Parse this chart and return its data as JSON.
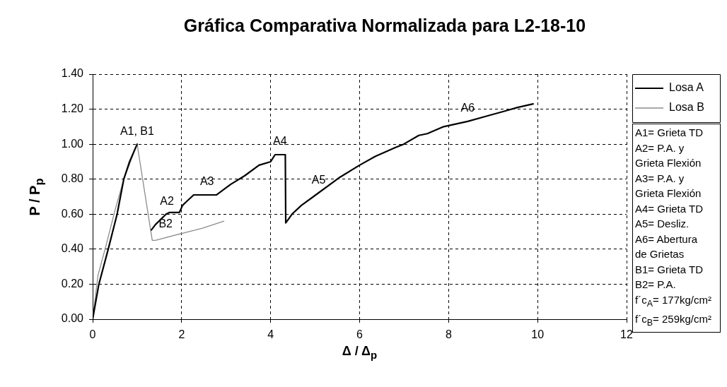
{
  "chart_data": {
    "type": "line",
    "title": "Gráfica Comparativa Normalizada para L2-18-10",
    "xlabel": "Δ / Δ$_{p}$",
    "ylabel": "P / P$_{p}$",
    "series": [
      {
        "name": "Losa A",
        "color": "#000000",
        "x": [
          0,
          0.14,
          0.35,
          0.55,
          0.7,
          0.83,
          1.0,
          1.16,
          1.32,
          1.41,
          1.65,
          1.73,
          1.95,
          2.02,
          2.1,
          2.27,
          2.78,
          3.1,
          3.42,
          3.74,
          4.0,
          4.1,
          4.33,
          4.34,
          4.48,
          4.69,
          4.96,
          5.55,
          6.0,
          6.35,
          6.8,
          6.99,
          7.33,
          7.52,
          7.89,
          8.43,
          8.85,
          9.28,
          9.55,
          9.9
        ],
        "values": [
          0,
          0.2,
          0.4,
          0.6,
          0.8,
          0.9,
          1.0,
          null,
          0.51,
          0.54,
          0.6,
          0.61,
          0.61,
          0.65,
          0.67,
          0.71,
          0.71,
          0.77,
          0.82,
          0.88,
          0.9,
          0.94,
          0.94,
          0.55,
          0.6,
          0.65,
          0.7,
          0.81,
          0.88,
          0.93,
          0.98,
          1.0,
          1.05,
          1.06,
          1.1,
          1.13,
          1.16,
          1.19,
          1.21,
          1.23
        ]
      },
      {
        "name": "Losa B",
        "color": "#8c8c8c",
        "x": [
          0,
          0.12,
          0.3,
          0.5,
          0.7,
          0.85,
          1.0,
          1.34,
          1.41,
          2.0,
          2.47,
          2.95
        ],
        "values": [
          0,
          0.25,
          0.42,
          0.62,
          0.8,
          0.9,
          1.0,
          0.45,
          0.45,
          0.49,
          0.52,
          0.56
        ]
      }
    ],
    "xlim": [
      0,
      12
    ],
    "xticks": [
      0,
      2,
      4,
      6,
      8,
      10,
      12
    ],
    "ylim": [
      0,
      1.4
    ],
    "yticks": [
      {
        "value": 0,
        "label": "0.00"
      },
      {
        "value": 0.2,
        "label": "0.20"
      },
      {
        "value": 0.4,
        "label": "0.40"
      },
      {
        "value": 0.6,
        "label": "0.60"
      },
      {
        "value": 0.8,
        "label": "0.80"
      },
      {
        "value": 1.0,
        "label": "1.00"
      },
      {
        "value": 1.2,
        "label": "1.20"
      },
      {
        "value": 1.4,
        "label": "1.40"
      }
    ],
    "grid": true,
    "legend": "top right",
    "marker": "none",
    "line_style": "solid",
    "annotations": [
      {
        "text": "A1, B1",
        "x": 1.0,
        "y": 1.0
      },
      {
        "text": "A2",
        "x": 1.67,
        "y": 0.6
      },
      {
        "text": "A3",
        "x": 2.57,
        "y": 0.71
      },
      {
        "text": "A4",
        "x": 4.21,
        "y": 0.94
      },
      {
        "text": "B2",
        "x": 1.64,
        "y": 0.47
      },
      {
        "text": "A5",
        "x": 5.08,
        "y": 0.72
      },
      {
        "text": "A6",
        "x": 8.43,
        "y": 1.13
      },
      "A1= Grieta TD",
      "A2= P.A. y\nGrieta Flexión",
      "A3= P.A. y\nGrieta Flexión",
      "A4= Grieta TD",
      "A5= Desliz.",
      "A6= Abertura\nde Grietas",
      "B1= Grieta TD",
      "B2= P.A.",
      "f´c$_{A}$= 177kg/cm²",
      "f´c$_{B}$= 259kg/cm²"
    ]
  }
}
